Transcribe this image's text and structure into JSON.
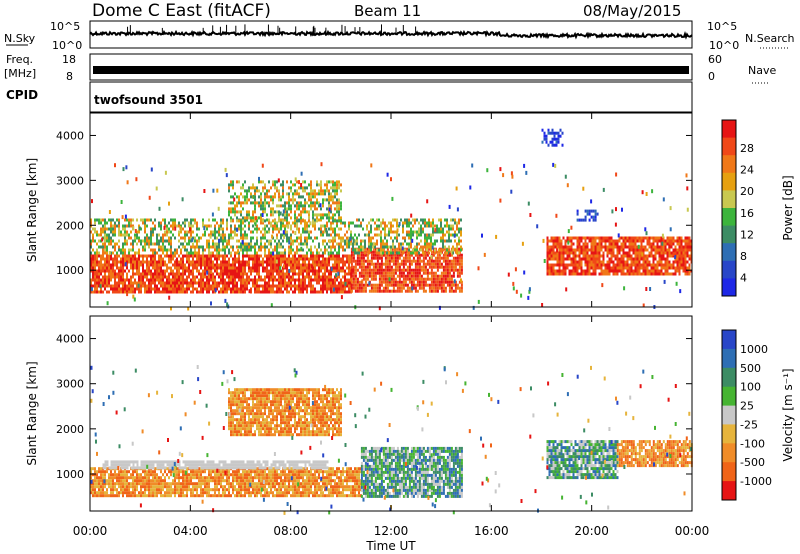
{
  "header": {
    "station": "Dome C East (fitACF)",
    "beam": "Beam 11",
    "date": "08/May/2015"
  },
  "strips": {
    "nsky_label": "N.Sky",
    "nsky_ticks": [
      "10^5",
      "10^0"
    ],
    "nsearch_label": "N.Search",
    "nsearch_ticks": [
      "10^5",
      "10^0"
    ],
    "freq_label": "Freq.",
    "freq_unit": "[MHz]",
    "freq_ticks": [
      "18",
      "8"
    ],
    "nave_label": "Nave",
    "nave_ticks": [
      "60",
      "0"
    ],
    "cpid_label": "CPID",
    "cpid_value": "twofsound 3501"
  },
  "chart_data": [
    {
      "type": "heatmap",
      "name": "Power",
      "ylabel": "Slant Range [km]",
      "ylim": [
        180,
        4500
      ],
      "yticks": [
        "1000",
        "2000",
        "3000",
        "4000"
      ],
      "xlim": [
        0,
        24
      ],
      "colorbar": {
        "label": "Power [dB]",
        "ticks": [
          "4",
          "8",
          "12",
          "16",
          "20",
          "24",
          "28"
        ],
        "colors": [
          "#1e28e6",
          "#2846c8",
          "#2e6eb4",
          "#3c8c64",
          "#3cb43c",
          "#c8c850",
          "#e6a010",
          "#f07818",
          "#f04818",
          "#e61414"
        ]
      },
      "regions": [
        {
          "t0": 0.0,
          "t1": 10.4,
          "r0": 500,
          "r1": 1350,
          "level": "high"
        },
        {
          "t0": 10.4,
          "t1": 14.8,
          "r0": 500,
          "r1": 1500,
          "level": "high"
        },
        {
          "t0": 0.0,
          "t1": 14.8,
          "r0": 1350,
          "r1": 2150,
          "level": "medium"
        },
        {
          "t0": 5.5,
          "t1": 10.0,
          "r0": 2100,
          "r1": 3000,
          "level": "medium"
        },
        {
          "t0": 18.2,
          "t1": 24.0,
          "r0": 900,
          "r1": 1750,
          "level": "high"
        },
        {
          "t0": 18.0,
          "t1": 18.8,
          "r0": 3800,
          "r1": 4150,
          "level": "low"
        },
        {
          "t0": 19.4,
          "t1": 20.2,
          "r0": 2100,
          "r1": 2350,
          "level": "low"
        }
      ]
    },
    {
      "type": "heatmap",
      "name": "Velocity",
      "ylabel": "Slant Range [km]",
      "ylim": [
        180,
        4500
      ],
      "yticks": [
        "1000",
        "2000",
        "3000",
        "4000"
      ],
      "xlim": [
        0,
        24
      ],
      "xticks": [
        "00:00",
        "04:00",
        "08:00",
        "12:00",
        "16:00",
        "20:00",
        "00:00"
      ],
      "xlabel": "Time UT",
      "colorbar": {
        "label": "Velocity [m s⁻¹]",
        "ticks": [
          "1000",
          "500",
          "100",
          "25",
          "-25",
          "-100",
          "-500",
          "-1000"
        ],
        "colors": [
          "#2846c8",
          "#2e6eb4",
          "#3c8c64",
          "#46b432",
          "#c8c8c8",
          "#e6b43c",
          "#f08c28",
          "#f06418",
          "#e61414"
        ]
      },
      "regions": [
        {
          "t0": 0.0,
          "t1": 10.8,
          "r0": 500,
          "r1": 1150,
          "level": "receding"
        },
        {
          "t0": 0.5,
          "t1": 9.5,
          "r0": 1150,
          "r1": 1300,
          "level": "zero"
        },
        {
          "t0": 10.8,
          "t1": 14.8,
          "r0": 500,
          "r1": 1600,
          "level": "approaching"
        },
        {
          "t0": 5.5,
          "t1": 10.0,
          "r0": 1900,
          "r1": 2900,
          "level": "receding"
        },
        {
          "t0": 18.2,
          "t1": 21.0,
          "r0": 900,
          "r1": 1750,
          "level": "approaching"
        },
        {
          "t0": 21.0,
          "t1": 24.0,
          "r0": 1200,
          "r1": 1750,
          "level": "receding"
        }
      ]
    }
  ]
}
